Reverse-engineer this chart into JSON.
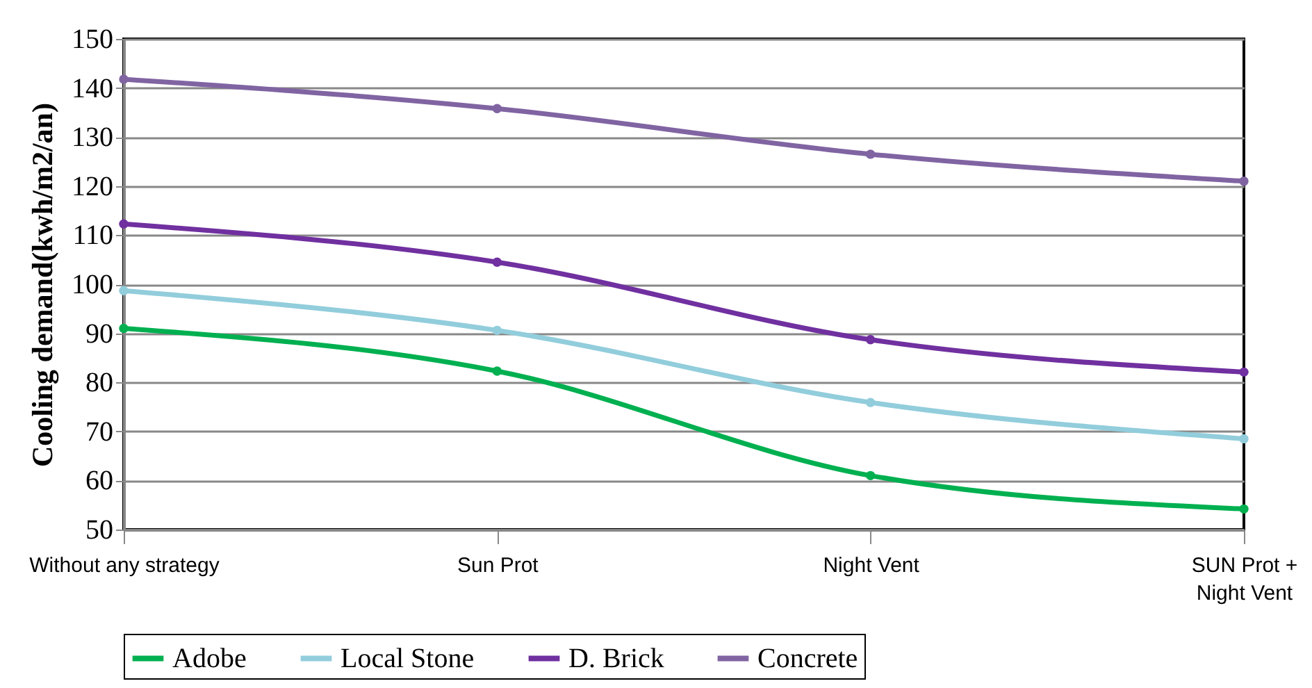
{
  "chart_data": {
    "type": "line",
    "ylabel": "Cooling demand(kwh/m2/an)",
    "categories": [
      "Without any strategy",
      "Sun Prot",
      "Night Vent",
      "SUN Prot + Night Vent"
    ],
    "series": [
      {
        "name": "Adobe",
        "color": "#00b050",
        "values": [
          91,
          82.3,
          61,
          54.2
        ]
      },
      {
        "name": "Local Stone",
        "color": "#92cddc",
        "values": [
          98.7,
          90.6,
          75.9,
          68.5
        ]
      },
      {
        "name": "D. Brick",
        "color": "#7030a0",
        "values": [
          112.3,
          104.5,
          88.7,
          82.1
        ]
      },
      {
        "name": "Concrete",
        "color": "#8064a2",
        "values": [
          141.8,
          135.8,
          126.5,
          121
        ]
      }
    ],
    "ylim": [
      50,
      150
    ],
    "yticks": [
      50,
      60,
      70,
      80,
      90,
      100,
      110,
      120,
      130,
      140,
      150
    ],
    "grid": "y",
    "legend": "bottom",
    "marker": "circle",
    "line_style": "solid"
  }
}
